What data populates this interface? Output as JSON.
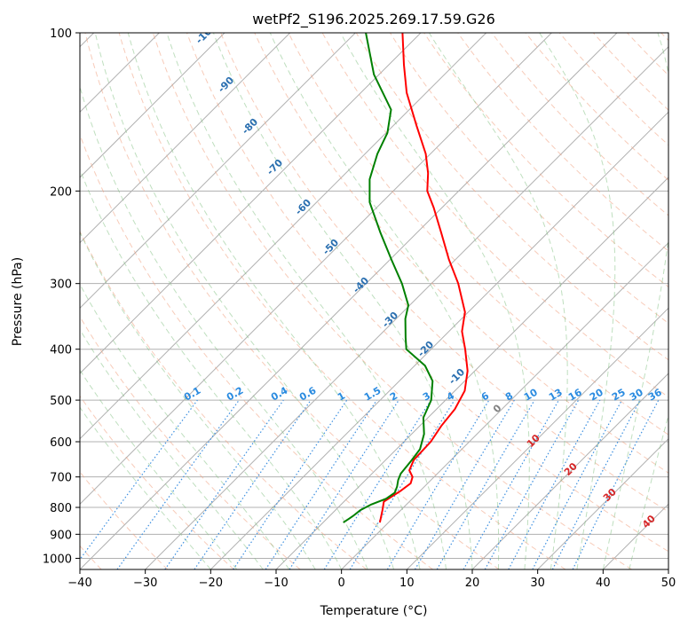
{
  "chart_data": {
    "type": "line",
    "title": "wetPf2_S196.2025.269.17.59.G26",
    "xlabel": "Temperature (°C)",
    "ylabel": "Pressure (hPa)",
    "xlim": [
      -40,
      50
    ],
    "ylim": [
      1050,
      100
    ],
    "y_scale": "log",
    "skew": "skew-T",
    "grid": true,
    "x_ticks": [
      -40,
      -30,
      -20,
      -10,
      0,
      10,
      20,
      30,
      40,
      50
    ],
    "y_ticks": [
      1000,
      900,
      800,
      700,
      600,
      500,
      400,
      300,
      200,
      100
    ],
    "dry_adiabat_labels": [
      "-100",
      "-90",
      "-80",
      "-70",
      "-60",
      "-50",
      "-40",
      "-30",
      "-20",
      "-10"
    ],
    "dry_adiabat_values": [
      -100,
      -90,
      -80,
      -70,
      -60,
      -50,
      -40,
      -30,
      -20,
      -10
    ],
    "moist_adiabat_labels": [
      "0",
      "10",
      "20",
      "30",
      "40"
    ],
    "moist_adiabat_values": [
      0,
      10,
      20,
      30,
      40
    ],
    "mixing_ratio_labels": [
      "0.1",
      "0.2",
      "0.4",
      "0.6",
      "1",
      "1.5",
      "2",
      "3",
      "4",
      "6",
      "8",
      "10",
      "13",
      "16",
      "20",
      "25",
      "30",
      "36"
    ],
    "mixing_ratio_values": [
      0.1,
      0.2,
      0.4,
      0.6,
      1,
      1.5,
      2,
      3,
      4,
      6,
      8,
      10,
      13,
      16,
      20,
      25,
      30,
      36
    ],
    "series": [
      {
        "color": "#ff0000",
        "points": [
          [
            855,
            -1.3
          ],
          [
            810,
            -2.8
          ],
          [
            780,
            -3.9
          ],
          [
            745,
            -3.0
          ],
          [
            720,
            -2.6
          ],
          [
            700,
            -3.3
          ],
          [
            680,
            -4.8
          ],
          [
            650,
            -5.7
          ],
          [
            600,
            -5.9
          ],
          [
            560,
            -6.7
          ],
          [
            520,
            -7.2
          ],
          [
            480,
            -8.5
          ],
          [
            440,
            -11.1
          ],
          [
            400,
            -14.8
          ],
          [
            370,
            -18.0
          ],
          [
            340,
            -20.5
          ],
          [
            300,
            -25.9
          ],
          [
            270,
            -31.0
          ],
          [
            240,
            -36.3
          ],
          [
            215,
            -41.3
          ],
          [
            200,
            -44.8
          ],
          [
            185,
            -47.4
          ],
          [
            170,
            -50.7
          ],
          [
            150,
            -56.5
          ],
          [
            130,
            -63.0
          ],
          [
            115,
            -67.7
          ],
          [
            100,
            -72.8
          ]
        ]
      },
      {
        "color": "#008000",
        "points": [
          [
            855,
            -6.9
          ],
          [
            840,
            -6.6
          ],
          [
            830,
            -6.4
          ],
          [
            810,
            -6.2
          ],
          [
            790,
            -5.4
          ],
          [
            770,
            -4.0
          ],
          [
            750,
            -3.6
          ],
          [
            730,
            -4.2
          ],
          [
            710,
            -5.0
          ],
          [
            690,
            -5.6
          ],
          [
            650,
            -6.0
          ],
          [
            620,
            -6.4
          ],
          [
            580,
            -8.1
          ],
          [
            540,
            -10.7
          ],
          [
            500,
            -12.2
          ],
          [
            460,
            -14.9
          ],
          [
            430,
            -18.4
          ],
          [
            400,
            -23.8
          ],
          [
            380,
            -25.7
          ],
          [
            350,
            -28.6
          ],
          [
            330,
            -30.2
          ],
          [
            300,
            -34.5
          ],
          [
            270,
            -39.8
          ],
          [
            240,
            -45.6
          ],
          [
            210,
            -51.9
          ],
          [
            190,
            -55.4
          ],
          [
            170,
            -58.1
          ],
          [
            155,
            -59.8
          ],
          [
            140,
            -62.8
          ],
          [
            120,
            -70.8
          ],
          [
            100,
            -78.4
          ]
        ]
      }
    ]
  }
}
